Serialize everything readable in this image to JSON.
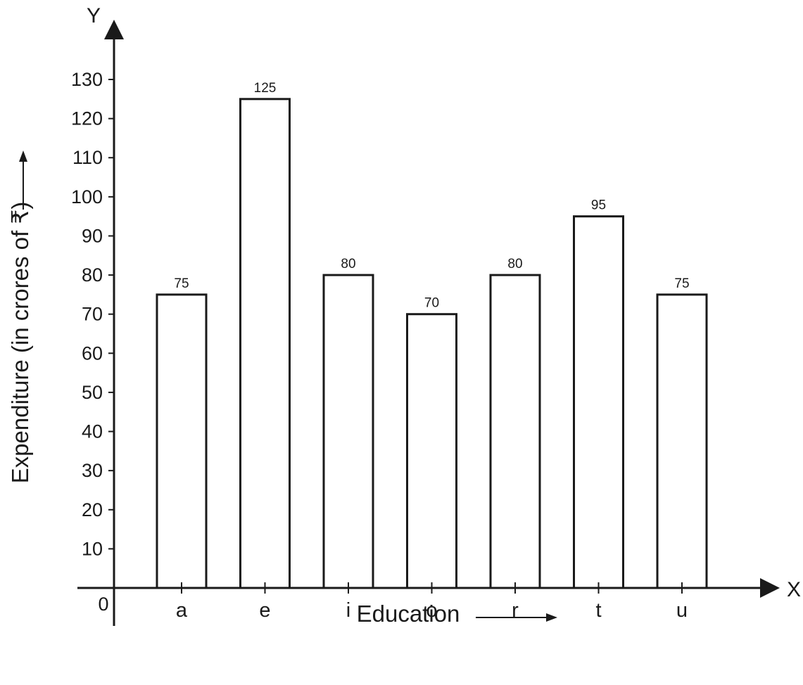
{
  "chart_data": {
    "type": "bar",
    "categories": [
      "a",
      "e",
      "i",
      "o",
      "r",
      "t",
      "u"
    ],
    "values": [
      75,
      125,
      80,
      70,
      80,
      95,
      75
    ],
    "data_labels": [
      "75",
      "125",
      "80",
      "70",
      "80",
      "95",
      "75"
    ],
    "xlabel": "Education",
    "ylabel": "Expenditure (in crores of ₹)",
    "x_axis_letter": "X",
    "y_axis_letter": "Y",
    "origin_label": "0",
    "ylim": [
      0,
      130
    ],
    "yticks": [
      10,
      20,
      30,
      40,
      50,
      60,
      70,
      80,
      90,
      100,
      110,
      120,
      130
    ],
    "grid": false,
    "legend": "none",
    "colors": {
      "bar_fill": "#ffffff",
      "bar_stroke": "#1a1a1a",
      "axis": "#1a1a1a"
    }
  }
}
